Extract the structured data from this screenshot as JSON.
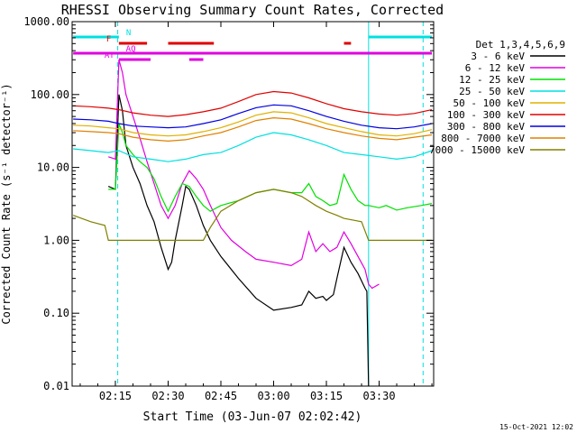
{
  "chart_data": {
    "type": "line",
    "title": "RHESSI Observing Summary Count Rates, Corrected",
    "xlabel": "Start Time (03-Jun-07 02:02:42)",
    "ylabel": "Corrected Count Rate (s⁻¹ detector⁻¹)",
    "yscale": "log",
    "ylim": [
      0.01,
      1000
    ],
    "xlim": [
      "02:02:42",
      "03:45:30"
    ],
    "x_ticks": [
      "02:15",
      "02:30",
      "02:45",
      "03:00",
      "03:15",
      "03:30"
    ],
    "y_ticks": [
      "1000.00",
      "100.00",
      "10.00",
      "1.00",
      "0.10",
      "0.01"
    ],
    "grid": false,
    "legend_title": "Det 1,3,4,5,6,9",
    "legend_position": "right",
    "footer_date": "15-Oct-2021 12:02",
    "vertical_markers": [
      {
        "time": "02:15:40",
        "color": "#00e0e0",
        "style": "dashed"
      },
      {
        "time": "03:42:30",
        "color": "#00e0e0",
        "style": "dashed"
      },
      {
        "time": "03:27:00",
        "color": "#00e0e0",
        "style": "solid"
      }
    ],
    "flag_bars": [
      {
        "label": "N",
        "color": "#00e0e0",
        "row": 1,
        "spans": [
          [
            "02:03",
            "02:16"
          ],
          [
            "03:27",
            "03:45"
          ]
        ]
      },
      {
        "label": "F",
        "color": "#e00000",
        "row": 2,
        "spans": [
          [
            "02:16",
            "02:24"
          ],
          [
            "02:30",
            "02:43"
          ],
          [
            "03:20",
            "03:22"
          ]
        ]
      },
      {
        "label": "AQ",
        "color": "#e000e0",
        "row": 3,
        "spans": [
          [
            "02:03",
            "03:45"
          ]
        ]
      },
      {
        "label": "AT",
        "color": "#e000e0",
        "row": 4,
        "spans": [
          [
            "02:16",
            "02:25"
          ],
          [
            "02:36",
            "02:40"
          ]
        ]
      }
    ],
    "series": [
      {
        "name": "3 - 6 keV",
        "color": "#000000",
        "x": [
          "02:13",
          "02:15",
          "02:16",
          "02:17",
          "02:18",
          "02:20",
          "02:22",
          "02:24",
          "02:26",
          "02:28",
          "02:30",
          "02:31",
          "02:32",
          "02:34",
          "02:35",
          "02:36",
          "02:38",
          "02:40",
          "02:42",
          "02:45",
          "02:50",
          "02:55",
          "03:00",
          "03:05",
          "03:08",
          "03:10",
          "03:12",
          "03:14",
          "03:15",
          "03:17",
          "03:18",
          "03:20",
          "03:22",
          "03:24",
          "03:26",
          "03:26.5",
          "03:27"
        ],
        "y": [
          5.5,
          5.0,
          100,
          60,
          20,
          10,
          6,
          3,
          1.8,
          0.8,
          0.4,
          0.5,
          1.0,
          3,
          5.5,
          5,
          3,
          1.6,
          1.0,
          0.6,
          0.3,
          0.16,
          0.11,
          0.12,
          0.13,
          0.2,
          0.16,
          0.17,
          0.15,
          0.18,
          0.3,
          0.8,
          0.5,
          0.35,
          0.22,
          0.2,
          0.01
        ]
      },
      {
        "name": "6 - 12 keV",
        "color": "#e000e0",
        "x": [
          "02:13",
          "02:15",
          "02:16",
          "02:17",
          "02:18",
          "02:20",
          "02:22",
          "02:24",
          "02:26",
          "02:28",
          "02:30",
          "02:32",
          "02:34",
          "02:36",
          "02:38",
          "02:40",
          "02:42",
          "02:45",
          "02:48",
          "02:52",
          "02:55",
          "03:00",
          "03:05",
          "03:08",
          "03:10",
          "03:12",
          "03:14",
          "03:16",
          "03:18",
          "03:20",
          "03:22",
          "03:24",
          "03:26",
          "03:27",
          "03:28",
          "03:30"
        ],
        "y": [
          14,
          13,
          300,
          200,
          100,
          50,
          25,
          12,
          6,
          3,
          2,
          3,
          6,
          9,
          7,
          5,
          3,
          1.5,
          1.0,
          0.7,
          0.55,
          0.5,
          0.45,
          0.55,
          1.3,
          0.7,
          0.9,
          0.7,
          0.8,
          1.3,
          0.9,
          0.6,
          0.4,
          0.25,
          0.22,
          0.25
        ]
      },
      {
        "name": "12 - 25 keV",
        "color": "#00e000",
        "x": [
          "02:13",
          "02:15",
          "02:16",
          "02:17",
          "02:18",
          "02:20",
          "02:22",
          "02:24",
          "02:26",
          "02:28",
          "02:30",
          "02:32",
          "02:34",
          "02:36",
          "02:38",
          "02:40",
          "02:42",
          "02:45",
          "02:50",
          "02:55",
          "03:00",
          "03:05",
          "03:08",
          "03:10",
          "03:12",
          "03:14",
          "03:16",
          "03:18",
          "03:20",
          "03:22",
          "03:24",
          "03:26",
          "03:27",
          "03:30",
          "03:32",
          "03:35",
          "03:38",
          "03:42",
          "03:45"
        ],
        "y": [
          5,
          5,
          40,
          30,
          20,
          15,
          12,
          10,
          7,
          4,
          2.5,
          4,
          6,
          5.5,
          4,
          3,
          2.5,
          3,
          3.5,
          4.5,
          5,
          4.5,
          4.5,
          6,
          4,
          3.5,
          3,
          3.2,
          8,
          5,
          3.5,
          3,
          3,
          2.8,
          3,
          2.6,
          2.8,
          3,
          3.2
        ]
      },
      {
        "name": "25 - 50 keV",
        "color": "#00e0e0",
        "x": [
          "02:03",
          "02:08",
          "02:13",
          "02:16",
          "02:20",
          "02:25",
          "02:30",
          "02:35",
          "02:40",
          "02:45",
          "02:50",
          "02:55",
          "03:00",
          "03:05",
          "03:10",
          "03:15",
          "03:20",
          "03:25",
          "03:30",
          "03:35",
          "03:40",
          "03:45"
        ],
        "y": [
          18,
          17,
          16,
          17,
          14,
          13,
          12,
          13,
          15,
          16,
          20,
          26,
          30,
          28,
          24,
          20,
          16,
          15,
          14,
          13,
          14,
          17
        ]
      },
      {
        "name": "50 - 100 keV",
        "color": "#e0b000",
        "x": [
          "02:03",
          "02:08",
          "02:13",
          "02:16",
          "02:20",
          "02:25",
          "02:30",
          "02:35",
          "02:40",
          "02:45",
          "02:50",
          "02:55",
          "03:00",
          "03:05",
          "03:10",
          "03:15",
          "03:20",
          "03:25",
          "03:30",
          "03:35",
          "03:40",
          "03:45"
        ],
        "y": [
          38,
          37,
          35,
          34,
          30,
          28,
          27,
          28,
          31,
          35,
          42,
          52,
          58,
          56,
          48,
          40,
          35,
          31,
          28,
          27,
          29,
          33
        ]
      },
      {
        "name": "100 - 300 keV",
        "color": "#e00000",
        "x": [
          "02:03",
          "02:08",
          "02:13",
          "02:16",
          "02:20",
          "02:25",
          "02:30",
          "02:35",
          "02:40",
          "02:45",
          "02:50",
          "02:55",
          "03:00",
          "03:05",
          "03:10",
          "03:15",
          "03:20",
          "03:25",
          "03:30",
          "03:35",
          "03:40",
          "03:45"
        ],
        "y": [
          70,
          68,
          65,
          62,
          56,
          52,
          50,
          53,
          58,
          65,
          80,
          100,
          110,
          105,
          90,
          75,
          64,
          58,
          54,
          52,
          55,
          62
        ]
      },
      {
        "name": "300 - 800 keV",
        "color": "#0000e0",
        "x": [
          "02:03",
          "02:08",
          "02:13",
          "02:16",
          "02:20",
          "02:25",
          "02:30",
          "02:35",
          "02:40",
          "02:45",
          "02:50",
          "02:55",
          "03:00",
          "03:05",
          "03:10",
          "03:15",
          "03:20",
          "03:25",
          "03:30",
          "03:35",
          "03:40",
          "03:45"
        ],
        "y": [
          46,
          45,
          43,
          40,
          37,
          36,
          35,
          36,
          40,
          45,
          55,
          66,
          72,
          70,
          60,
          50,
          43,
          38,
          35,
          34,
          36,
          40
        ]
      },
      {
        "name": "800 - 7000 keV",
        "color": "#e08000",
        "x": [
          "02:03",
          "02:08",
          "02:13",
          "02:16",
          "02:20",
          "02:25",
          "02:30",
          "02:35",
          "02:40",
          "02:45",
          "02:50",
          "02:55",
          "03:00",
          "03:05",
          "03:10",
          "03:15",
          "03:20",
          "03:25",
          "03:30",
          "03:35",
          "03:40",
          "03:45"
        ],
        "y": [
          32,
          31,
          30,
          29,
          26,
          24,
          23,
          24,
          27,
          30,
          36,
          44,
          48,
          46,
          40,
          34,
          30,
          27,
          25,
          24,
          26,
          28
        ]
      },
      {
        "name": "7000 - 15000 keV",
        "color": "#808000",
        "x": [
          "02:03",
          "02:08",
          "02:12",
          "02:13",
          "02:20",
          "02:30",
          "02:36",
          "02:40",
          "02:42",
          "02:45",
          "02:50",
          "02:55",
          "03:00",
          "03:05",
          "03:08",
          "03:12",
          "03:15",
          "03:18",
          "03:20",
          "03:25",
          "03:27",
          "03:30",
          "03:35",
          "03:40",
          "03:45"
        ],
        "y": [
          2.2,
          1.8,
          1.6,
          1.0,
          1.0,
          1.0,
          1.0,
          1.0,
          1.5,
          2.5,
          3.5,
          4.5,
          5,
          4.5,
          4,
          3,
          2.5,
          2.2,
          2,
          1.8,
          1.0,
          1.0,
          1.0,
          1.0,
          1.0
        ]
      }
    ]
  }
}
